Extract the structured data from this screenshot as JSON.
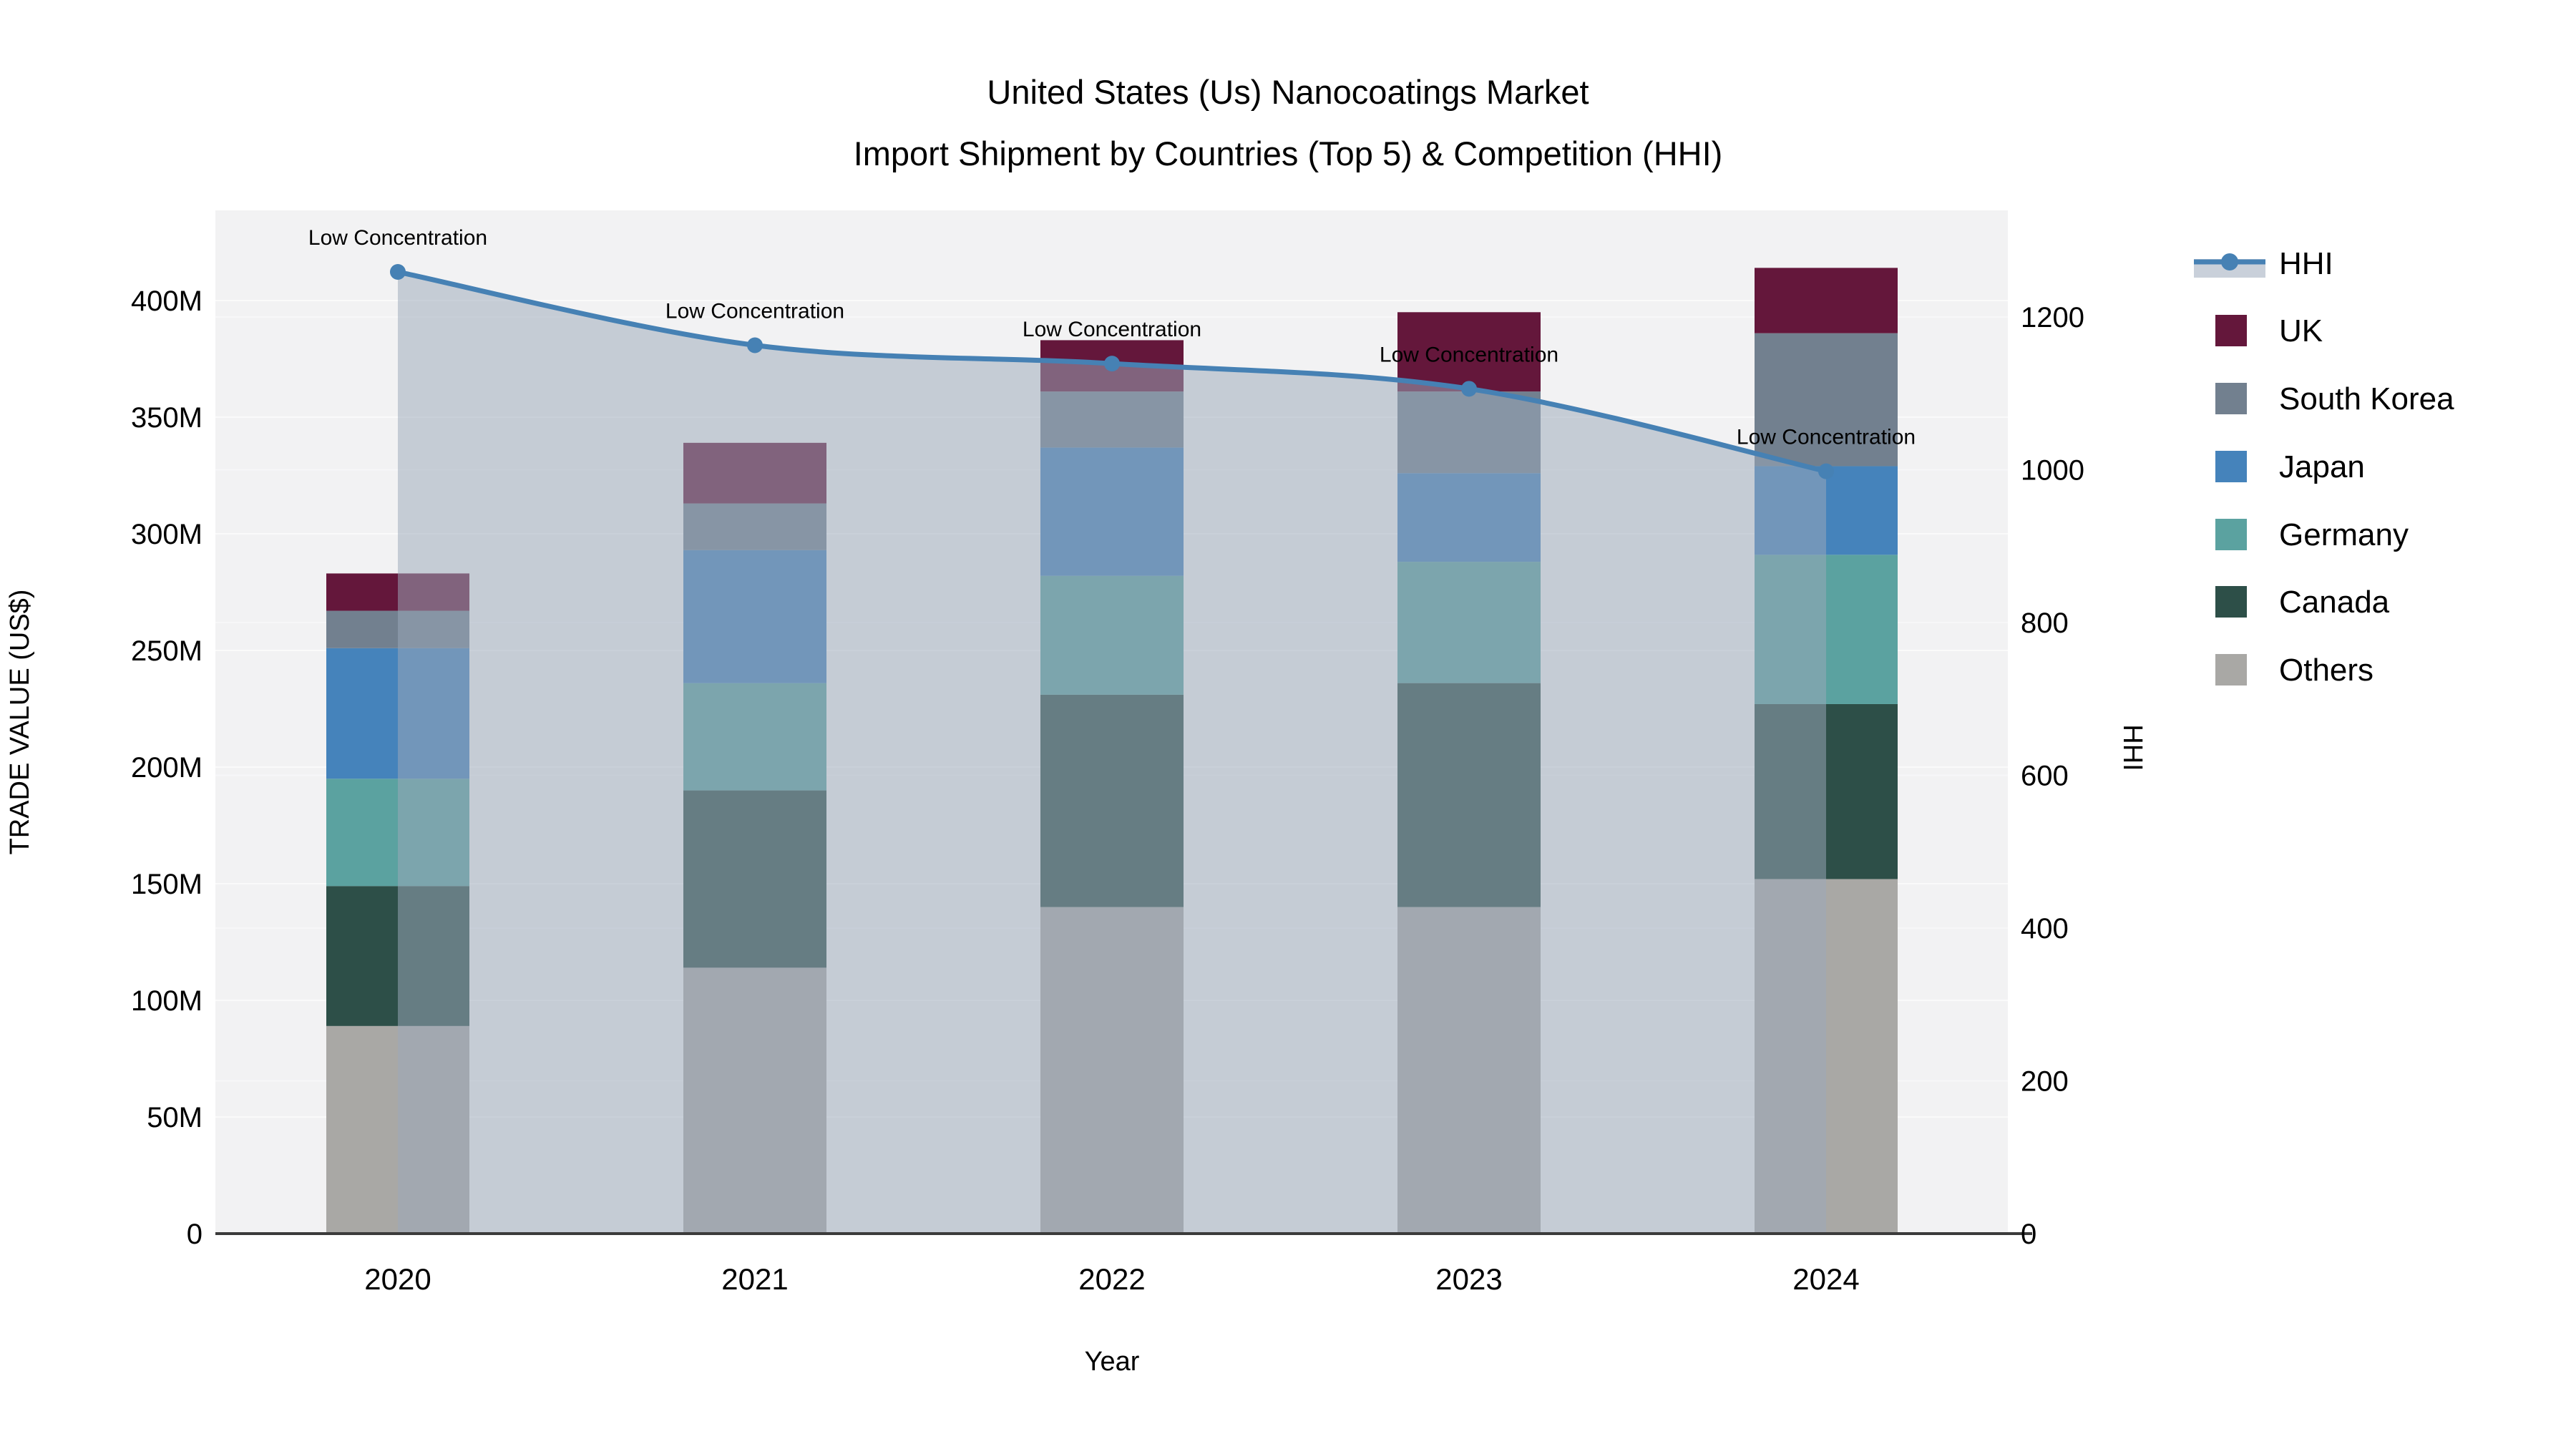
{
  "title": {
    "line1": "United States (Us) Nanocoatings Market",
    "line2": "Import Shipment by Countries (Top 5) & Competition (HHI)"
  },
  "chart_data": {
    "type": "bar+line",
    "categories": [
      "2020",
      "2021",
      "2022",
      "2023",
      "2024"
    ],
    "stack_order_note": "series listed bottom-to-top of stack",
    "series": [
      {
        "name": "Others",
        "values": [
          89,
          114,
          140,
          140,
          152
        ],
        "color": "#A9A8A5"
      },
      {
        "name": "Canada",
        "values": [
          60,
          76,
          91,
          96,
          75
        ],
        "color": "#2D4F48"
      },
      {
        "name": "Germany",
        "values": [
          46,
          46,
          51,
          52,
          64
        ],
        "color": "#5BA2A0"
      },
      {
        "name": "Japan",
        "values": [
          56,
          57,
          55,
          38,
          38
        ],
        "color": "#4583BB"
      },
      {
        "name": "South Korea",
        "values": [
          16,
          20,
          24,
          35,
          57
        ],
        "color": "#72808F"
      },
      {
        "name": "UK",
        "values": [
          16,
          26,
          22,
          34,
          28
        ],
        "color": "#64173B"
      }
    ],
    "totals": [
      283,
      339,
      383,
      395,
      414
    ],
    "hhi": {
      "name": "HHI",
      "values": [
        1259,
        1163,
        1139,
        1106,
        998
      ],
      "color": "#4681B4",
      "area_color": "#9CA8BA",
      "area_opacity": 0.52,
      "annotation_text": "Low Concentration",
      "annotations": [
        "Low Concentration",
        "Low Concentration",
        "Low Concentration",
        "Low Concentration",
        "Low Concentration"
      ]
    },
    "xlabel": "Year",
    "ylabel_left": "TRADE VALUE (US$)",
    "ylabel_right": "HHI",
    "y_left_ticks": [
      "0",
      "50M",
      "100M",
      "150M",
      "200M",
      "250M",
      "300M",
      "350M",
      "400M"
    ],
    "y_left_tick_values": [
      0,
      50,
      100,
      150,
      200,
      250,
      300,
      350,
      400
    ],
    "y_right_ticks": [
      "0",
      "200",
      "400",
      "600",
      "800",
      "1000",
      "1200"
    ],
    "y_right_tick_values": [
      0,
      200,
      400,
      600,
      800,
      1000,
      1200
    ],
    "ylim_left": [
      0,
      438
    ],
    "ylim_right": [
      0,
      1340
    ],
    "grid": true,
    "legend_position": "right",
    "plot_bg": "#F2F2F3",
    "grid_color": "#FAFAFA",
    "axis_line_color": "#3B3B3B"
  },
  "legend": {
    "items": [
      {
        "label": "HHI",
        "type": "line",
        "color": "#4681B4",
        "band_color": "#C9D0DA"
      },
      {
        "label": "UK",
        "type": "square",
        "color": "#64173B"
      },
      {
        "label": "South Korea",
        "type": "square",
        "color": "#72808F"
      },
      {
        "label": "Japan",
        "type": "square",
        "color": "#4583BB"
      },
      {
        "label": "Germany",
        "type": "square",
        "color": "#5BA2A0"
      },
      {
        "label": "Canada",
        "type": "square",
        "color": "#2D4F48"
      },
      {
        "label": "Others",
        "type": "square",
        "color": "#A9A8A5"
      }
    ]
  }
}
